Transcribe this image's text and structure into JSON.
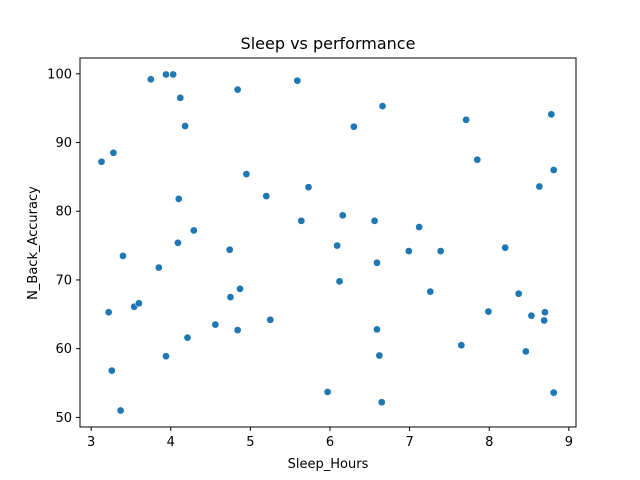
{
  "chart_data": {
    "type": "scatter",
    "title": "Sleep vs performance",
    "xlabel": "Sleep_Hours",
    "ylabel": "N_Back_Accuracy",
    "xlim": [
      2.86,
      9.09
    ],
    "ylim": [
      48.6,
      102.3
    ],
    "xticks": [
      3,
      4,
      5,
      6,
      7,
      8,
      9
    ],
    "yticks": [
      50,
      60,
      70,
      80,
      90,
      100
    ],
    "grid": false,
    "legend": "none",
    "marker_color": "#1f77b4",
    "points": [
      {
        "x": 3.13,
        "y": 87.2
      },
      {
        "x": 3.28,
        "y": 88.5
      },
      {
        "x": 3.22,
        "y": 65.3
      },
      {
        "x": 3.26,
        "y": 56.8
      },
      {
        "x": 3.37,
        "y": 51.0
      },
      {
        "x": 3.4,
        "y": 73.5
      },
      {
        "x": 3.54,
        "y": 66.1
      },
      {
        "x": 3.6,
        "y": 66.6
      },
      {
        "x": 3.75,
        "y": 99.2
      },
      {
        "x": 3.85,
        "y": 71.8
      },
      {
        "x": 3.94,
        "y": 99.9
      },
      {
        "x": 4.03,
        "y": 99.9
      },
      {
        "x": 3.94,
        "y": 58.9
      },
      {
        "x": 4.12,
        "y": 96.5
      },
      {
        "x": 4.18,
        "y": 92.4
      },
      {
        "x": 4.1,
        "y": 81.8
      },
      {
        "x": 4.09,
        "y": 75.4
      },
      {
        "x": 4.29,
        "y": 77.2
      },
      {
        "x": 4.21,
        "y": 61.6
      },
      {
        "x": 4.56,
        "y": 63.5
      },
      {
        "x": 4.74,
        "y": 74.4
      },
      {
        "x": 4.75,
        "y": 67.5
      },
      {
        "x": 4.84,
        "y": 97.7
      },
      {
        "x": 4.87,
        "y": 68.7
      },
      {
        "x": 4.84,
        "y": 62.7
      },
      {
        "x": 4.95,
        "y": 85.4
      },
      {
        "x": 5.2,
        "y": 82.2
      },
      {
        "x": 5.25,
        "y": 64.2
      },
      {
        "x": 5.59,
        "y": 99.0
      },
      {
        "x": 5.64,
        "y": 78.6
      },
      {
        "x": 5.73,
        "y": 83.5
      },
      {
        "x": 5.97,
        "y": 53.7
      },
      {
        "x": 6.09,
        "y": 75.0
      },
      {
        "x": 6.12,
        "y": 69.8
      },
      {
        "x": 6.16,
        "y": 79.4
      },
      {
        "x": 6.3,
        "y": 92.3
      },
      {
        "x": 6.56,
        "y": 78.6
      },
      {
        "x": 6.59,
        "y": 72.5
      },
      {
        "x": 6.59,
        "y": 62.8
      },
      {
        "x": 6.62,
        "y": 59.0
      },
      {
        "x": 6.65,
        "y": 52.2
      },
      {
        "x": 6.66,
        "y": 95.3
      },
      {
        "x": 6.99,
        "y": 74.2
      },
      {
        "x": 7.12,
        "y": 77.7
      },
      {
        "x": 7.26,
        "y": 68.3
      },
      {
        "x": 7.39,
        "y": 74.2
      },
      {
        "x": 7.65,
        "y": 60.5
      },
      {
        "x": 7.71,
        "y": 93.3
      },
      {
        "x": 7.85,
        "y": 87.5
      },
      {
        "x": 7.99,
        "y": 65.4
      },
      {
        "x": 8.2,
        "y": 74.7
      },
      {
        "x": 8.37,
        "y": 68.0
      },
      {
        "x": 8.46,
        "y": 59.6
      },
      {
        "x": 8.53,
        "y": 64.8
      },
      {
        "x": 8.63,
        "y": 83.6
      },
      {
        "x": 8.69,
        "y": 64.1
      },
      {
        "x": 8.7,
        "y": 65.3
      },
      {
        "x": 8.78,
        "y": 94.1
      },
      {
        "x": 8.81,
        "y": 86.0
      },
      {
        "x": 8.81,
        "y": 53.6
      }
    ]
  }
}
